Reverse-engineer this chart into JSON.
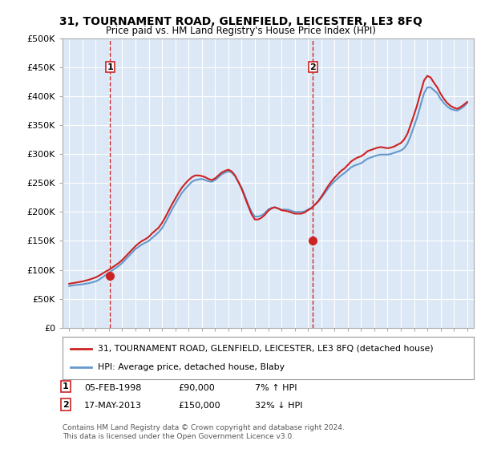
{
  "title": "31, TOURNAMENT ROAD, GLENFIELD, LEICESTER, LE3 8FQ",
  "subtitle": "Price paid vs. HM Land Registry's House Price Index (HPI)",
  "background_color": "#e8f0f8",
  "plot_background": "#dce8f5",
  "ylim": [
    0,
    500000
  ],
  "yticks": [
    0,
    50000,
    100000,
    150000,
    200000,
    250000,
    300000,
    350000,
    400000,
    450000,
    500000
  ],
  "ytick_labels": [
    "£0",
    "£50K",
    "£100K",
    "£150K",
    "£200K",
    "£250K",
    "£300K",
    "£350K",
    "£400K",
    "£450K",
    "£500K"
  ],
  "xlim_start": 1994.5,
  "xlim_end": 2025.5,
  "xticks": [
    1995,
    1996,
    1997,
    1998,
    1999,
    2000,
    2001,
    2002,
    2003,
    2004,
    2005,
    2006,
    2007,
    2008,
    2009,
    2010,
    2011,
    2012,
    2013,
    2014,
    2015,
    2016,
    2017,
    2018,
    2019,
    2020,
    2021,
    2022,
    2023,
    2024,
    2025
  ],
  "marker1_x": 1998.09,
  "marker1_y": 90000,
  "marker1_label": "1",
  "marker1_date": "05-FEB-1998",
  "marker1_price": "£90,000",
  "marker1_hpi": "7% ↑ HPI",
  "marker2_x": 2013.38,
  "marker2_y": 150000,
  "marker2_label": "2",
  "marker2_date": "17-MAY-2013",
  "marker2_price": "£150,000",
  "marker2_hpi": "32% ↓ HPI",
  "red_line_color": "#cc2222",
  "blue_line_color": "#6699cc",
  "legend_label_red": "31, TOURNAMENT ROAD, GLENFIELD, LEICESTER, LE3 8FQ (detached house)",
  "legend_label_blue": "HPI: Average price, detached house, Blaby",
  "footer_text": "Contains HM Land Registry data © Crown copyright and database right 2024.\nThis data is licensed under the Open Government Licence v3.0.",
  "hpi_data_x": [
    1995.0,
    1995.25,
    1995.5,
    1995.75,
    1996.0,
    1996.25,
    1996.5,
    1996.75,
    1997.0,
    1997.25,
    1997.5,
    1997.75,
    1998.0,
    1998.25,
    1998.5,
    1998.75,
    1999.0,
    1999.25,
    1999.5,
    1999.75,
    2000.0,
    2000.25,
    2000.5,
    2000.75,
    2001.0,
    2001.25,
    2001.5,
    2001.75,
    2002.0,
    2002.25,
    2002.5,
    2002.75,
    2003.0,
    2003.25,
    2003.5,
    2003.75,
    2004.0,
    2004.25,
    2004.5,
    2004.75,
    2005.0,
    2005.25,
    2005.5,
    2005.75,
    2006.0,
    2006.25,
    2006.5,
    2006.75,
    2007.0,
    2007.25,
    2007.5,
    2007.75,
    2008.0,
    2008.25,
    2008.5,
    2008.75,
    2009.0,
    2009.25,
    2009.5,
    2009.75,
    2010.0,
    2010.25,
    2010.5,
    2010.75,
    2011.0,
    2011.25,
    2011.5,
    2011.75,
    2012.0,
    2012.25,
    2012.5,
    2012.75,
    2013.0,
    2013.25,
    2013.5,
    2013.75,
    2014.0,
    2014.25,
    2014.5,
    2014.75,
    2015.0,
    2015.25,
    2015.5,
    2015.75,
    2016.0,
    2016.25,
    2016.5,
    2016.75,
    2017.0,
    2017.25,
    2017.5,
    2017.75,
    2018.0,
    2018.25,
    2018.5,
    2018.75,
    2019.0,
    2019.25,
    2019.5,
    2019.75,
    2020.0,
    2020.25,
    2020.5,
    2020.75,
    2021.0,
    2021.25,
    2021.5,
    2021.75,
    2022.0,
    2022.25,
    2022.5,
    2022.75,
    2023.0,
    2023.25,
    2023.5,
    2023.75,
    2024.0,
    2024.25,
    2024.5,
    2024.75,
    2025.0
  ],
  "hpi_data_y": [
    72000,
    73000,
    74000,
    74500,
    75000,
    76000,
    77000,
    78500,
    80000,
    83000,
    87000,
    91000,
    95000,
    99000,
    103000,
    107000,
    112000,
    118000,
    124000,
    130000,
    136000,
    140000,
    144000,
    147000,
    150000,
    155000,
    160000,
    165000,
    172000,
    182000,
    193000,
    204000,
    214000,
    224000,
    233000,
    240000,
    246000,
    252000,
    255000,
    256000,
    257000,
    255000,
    253000,
    252000,
    255000,
    260000,
    265000,
    268000,
    270000,
    268000,
    262000,
    252000,
    242000,
    228000,
    213000,
    200000,
    192000,
    192000,
    194000,
    198000,
    204000,
    207000,
    208000,
    206000,
    204000,
    204000,
    204000,
    202000,
    200000,
    200000,
    200000,
    201000,
    204000,
    207000,
    212000,
    217000,
    224000,
    232000,
    240000,
    247000,
    253000,
    258000,
    263000,
    267000,
    272000,
    277000,
    280000,
    282000,
    284000,
    288000,
    292000,
    294000,
    296000,
    298000,
    299000,
    299000,
    299000,
    300000,
    302000,
    304000,
    306000,
    310000,
    318000,
    332000,
    348000,
    365000,
    385000,
    405000,
    415000,
    415000,
    410000,
    405000,
    395000,
    388000,
    382000,
    378000,
    376000,
    375000,
    378000,
    382000,
    388000
  ],
  "price_line_x": [
    1995.0,
    1995.25,
    1995.5,
    1995.75,
    1996.0,
    1996.25,
    1996.5,
    1996.75,
    1997.0,
    1997.25,
    1997.5,
    1997.75,
    1998.0,
    1998.25,
    1998.5,
    1998.75,
    1999.0,
    1999.25,
    1999.5,
    1999.75,
    2000.0,
    2000.25,
    2000.5,
    2000.75,
    2001.0,
    2001.25,
    2001.5,
    2001.75,
    2002.0,
    2002.25,
    2002.5,
    2002.75,
    2003.0,
    2003.25,
    2003.5,
    2003.75,
    2004.0,
    2004.25,
    2004.5,
    2004.75,
    2005.0,
    2005.25,
    2005.5,
    2005.75,
    2006.0,
    2006.25,
    2006.5,
    2006.75,
    2007.0,
    2007.25,
    2007.5,
    2007.75,
    2008.0,
    2008.25,
    2008.5,
    2008.75,
    2009.0,
    2009.25,
    2009.5,
    2009.75,
    2010.0,
    2010.25,
    2010.5,
    2010.75,
    2011.0,
    2011.25,
    2011.5,
    2011.75,
    2012.0,
    2012.25,
    2012.5,
    2012.75,
    2013.0,
    2013.25,
    2013.5,
    2013.75,
    2014.0,
    2014.25,
    2014.5,
    2014.75,
    2015.0,
    2015.25,
    2015.5,
    2015.75,
    2016.0,
    2016.25,
    2016.5,
    2016.75,
    2017.0,
    2017.25,
    2017.5,
    2017.75,
    2018.0,
    2018.25,
    2018.5,
    2018.75,
    2019.0,
    2019.25,
    2019.5,
    2019.75,
    2020.0,
    2020.25,
    2020.5,
    2020.75,
    2021.0,
    2021.25,
    2021.5,
    2021.75,
    2022.0,
    2022.25,
    2022.5,
    2022.75,
    2023.0,
    2023.25,
    2023.5,
    2023.75,
    2024.0,
    2024.25,
    2024.5,
    2024.75,
    2025.0
  ],
  "price_line_y": [
    76000,
    77000,
    78000,
    79000,
    80000,
    81500,
    83000,
    85000,
    87000,
    90000,
    93500,
    97000,
    100000,
    104000,
    108000,
    112000,
    117000,
    123000,
    129000,
    135000,
    141000,
    146000,
    150000,
    153000,
    157000,
    163000,
    168000,
    173000,
    181000,
    191000,
    202000,
    213000,
    223000,
    233000,
    242000,
    249000,
    255000,
    260000,
    263000,
    263000,
    262000,
    260000,
    257000,
    255000,
    258000,
    263000,
    268000,
    271000,
    273000,
    270000,
    263000,
    252000,
    240000,
    225000,
    210000,
    196000,
    187000,
    187000,
    190000,
    195000,
    202000,
    206000,
    208000,
    206000,
    203000,
    202000,
    201000,
    199000,
    197000,
    197000,
    197000,
    199000,
    203000,
    206000,
    212000,
    218000,
    226000,
    235000,
    244000,
    252000,
    259000,
    265000,
    271000,
    275000,
    281000,
    287000,
    291000,
    294000,
    296000,
    300000,
    305000,
    307000,
    309000,
    311000,
    312000,
    311000,
    310000,
    311000,
    313000,
    316000,
    319000,
    325000,
    335000,
    351000,
    368000,
    386000,
    407000,
    427000,
    435000,
    432000,
    423000,
    415000,
    404000,
    395000,
    388000,
    383000,
    380000,
    378000,
    381000,
    385000,
    390000
  ]
}
